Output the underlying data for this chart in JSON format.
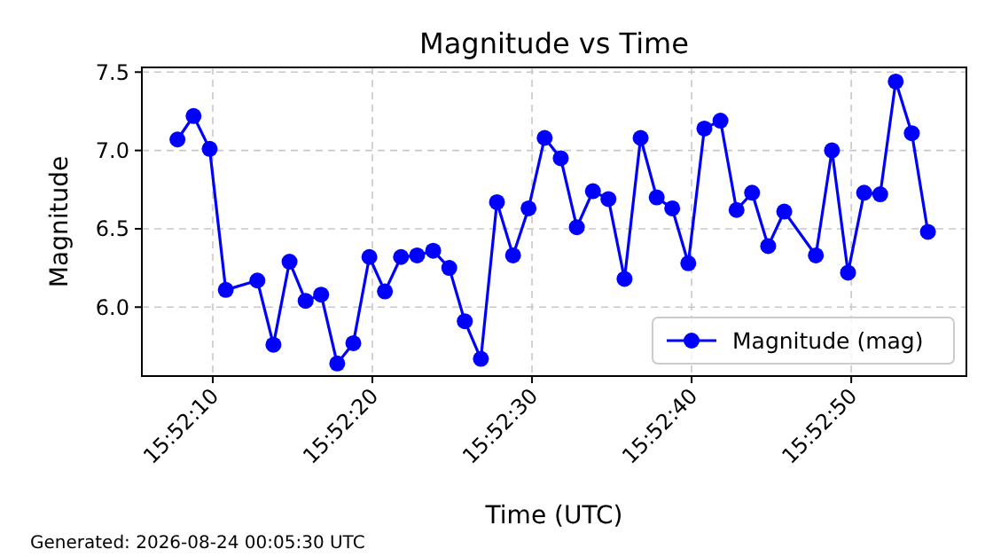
{
  "chart_data": {
    "type": "line",
    "title": "Magnitude vs Time",
    "xlabel": "Time (UTC)",
    "ylabel": "Magnitude",
    "annotations": [
      "Generated: 2026-08-24 00:05:30 UTC"
    ],
    "x": [
      15.86883,
      15.86911,
      15.86939,
      15.86967,
      15.87022,
      15.8705,
      15.87078,
      15.87106,
      15.87133,
      15.87161,
      15.87189,
      15.87217,
      15.87244,
      15.87272,
      15.873,
      15.87328,
      15.87356,
      15.87383,
      15.87411,
      15.87439,
      15.87467,
      15.87494,
      15.87522,
      15.8755,
      15.87578,
      15.87606,
      15.87633,
      15.87661,
      15.87689,
      15.87717,
      15.87744,
      15.87772,
      15.878,
      15.87828,
      15.87856,
      15.87883,
      15.87911,
      15.87939,
      15.87994,
      15.88022,
      15.8805,
      15.88078,
      15.88106,
      15.88133,
      15.88161,
      15.88189
    ],
    "series": [
      {
        "name": "Magnitude (mag)",
        "color": "#0000ff",
        "values": [
          7.07,
          7.22,
          7.01,
          6.11,
          6.17,
          5.76,
          6.29,
          6.04,
          6.08,
          5.64,
          5.77,
          6.32,
          6.1,
          6.32,
          6.33,
          6.36,
          6.25,
          5.91,
          5.67,
          6.67,
          6.33,
          6.63,
          7.08,
          6.95,
          6.51,
          6.74,
          6.69,
          6.18,
          7.08,
          6.7,
          6.63,
          6.28,
          7.14,
          7.19,
          6.62,
          6.73,
          6.39,
          6.61,
          6.33,
          7.0,
          6.22,
          6.73,
          6.72,
          7.44,
          7.11,
          6.48
        ]
      }
    ],
    "xlim": [
      15.86821,
      15.88256
    ],
    "xticks": [
      {
        "value": 15.869444,
        "label": "15:52:10"
      },
      {
        "value": 15.872222,
        "label": "15:52:20"
      },
      {
        "value": 15.875,
        "label": "15:52:30"
      },
      {
        "value": 15.877778,
        "label": "15:52:40"
      },
      {
        "value": 15.880556,
        "label": "15:52:50"
      }
    ],
    "ylim": [
      5.56,
      7.53
    ],
    "yticks": [
      {
        "value": 6,
        "label": "6.0"
      },
      {
        "value": 6.5,
        "label": "6.5"
      },
      {
        "value": 7,
        "label": "7.0"
      },
      {
        "value": 7.5,
        "label": "7.5"
      }
    ],
    "grid": true,
    "legend": "bottom right",
    "marker": "circle",
    "line_style": "solid"
  }
}
